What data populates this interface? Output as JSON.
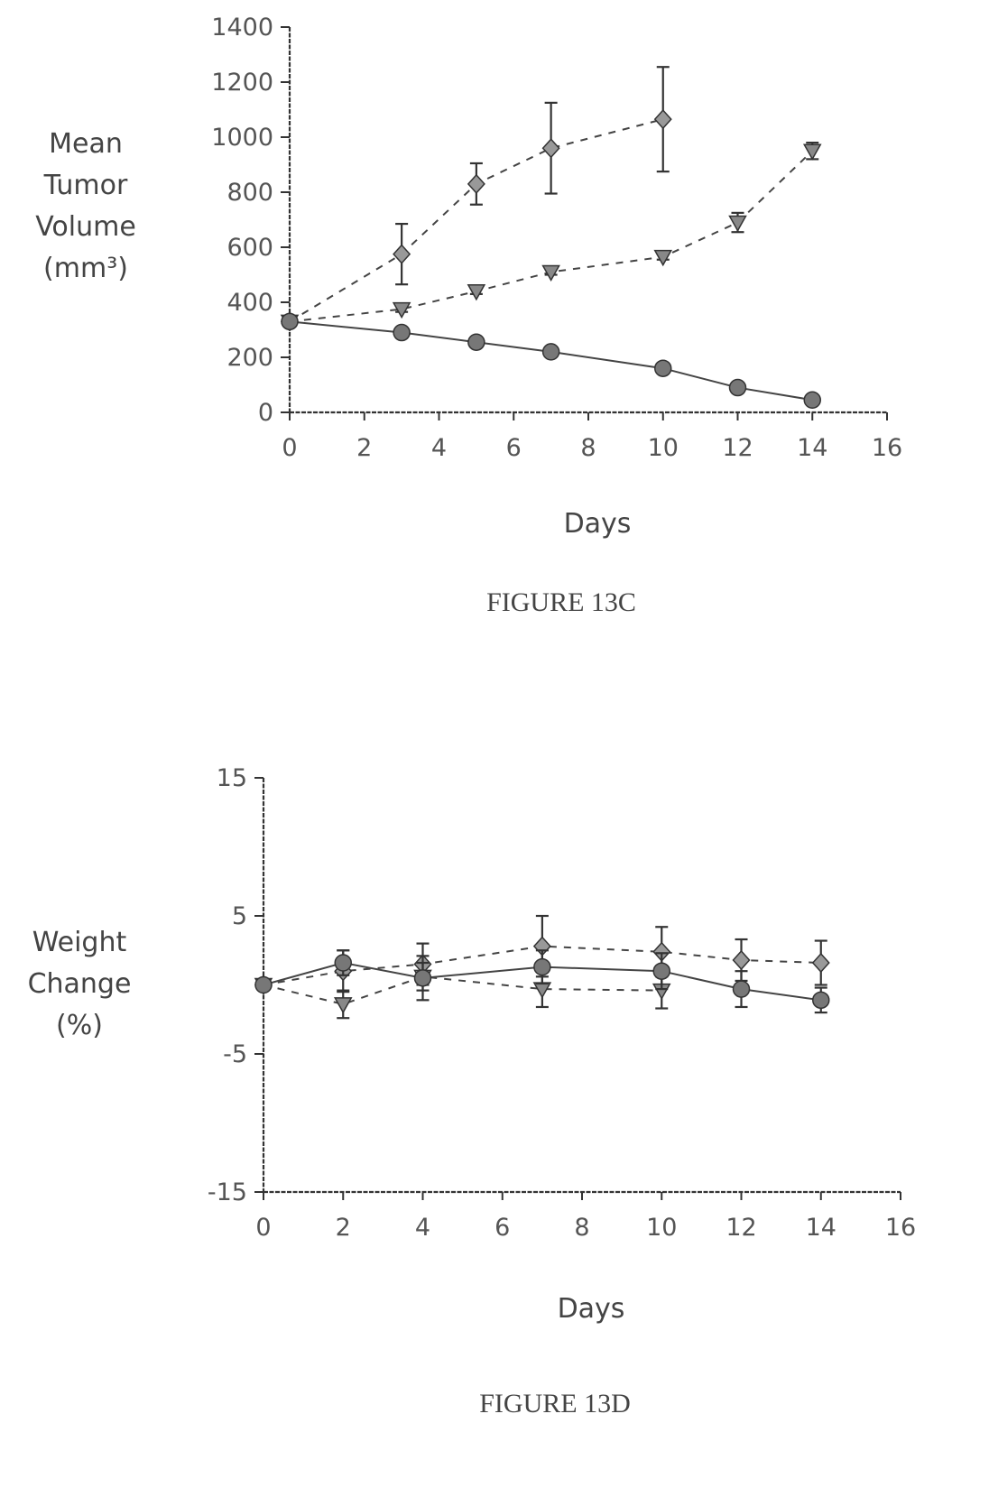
{
  "chart_data": [
    {
      "type": "line",
      "caption": "FIGURE 13C",
      "xlabel": "Days",
      "ylabel": [
        "Mean",
        "Tumor",
        "Volume",
        "(mm³)"
      ],
      "xlim": [
        0,
        16
      ],
      "ylim": [
        0,
        1400
      ],
      "xticks": [
        "0",
        "2",
        "4",
        "6",
        "8",
        "10",
        "12",
        "14",
        "16"
      ],
      "yticks": [
        "0",
        "200",
        "400",
        "600",
        "800",
        "1000",
        "1200",
        "1400"
      ],
      "series": [
        {
          "style": "dashed",
          "marker": "diamond",
          "x": [
            0,
            3,
            5,
            7,
            10
          ],
          "y": [
            330,
            575,
            830,
            960,
            1065
          ],
          "err": [
            0,
            110,
            75,
            165,
            190
          ]
        },
        {
          "style": "dashed",
          "marker": "triangle-down",
          "x": [
            0,
            3,
            5,
            7,
            10,
            12,
            14
          ],
          "y": [
            330,
            375,
            440,
            510,
            565,
            690,
            950
          ],
          "err": [
            0,
            10,
            10,
            10,
            10,
            35,
            30
          ]
        },
        {
          "style": "solid",
          "marker": "circle",
          "x": [
            0,
            3,
            5,
            7,
            10,
            12,
            14
          ],
          "y": [
            330,
            290,
            255,
            220,
            160,
            90,
            45
          ],
          "err": [
            0,
            0,
            0,
            0,
            0,
            0,
            0
          ]
        }
      ]
    },
    {
      "type": "line",
      "caption": "FIGURE 13D",
      "xlabel": "Days",
      "ylabel": [
        "Weight",
        "Change",
        "(%)"
      ],
      "xlim": [
        0,
        16
      ],
      "ylim": [
        -15,
        15
      ],
      "xticks": [
        "0",
        "2",
        "4",
        "6",
        "8",
        "10",
        "12",
        "14",
        "16"
      ],
      "yticks": [
        "15",
        "5",
        "-5",
        "-15"
      ],
      "ytick_values": [
        15,
        5,
        -5,
        -15
      ],
      "series": [
        {
          "style": "dashed",
          "marker": "diamond",
          "x": [
            0,
            2,
            4,
            7,
            10,
            12,
            14
          ],
          "y": [
            0,
            1.0,
            1.5,
            2.8,
            2.4,
            1.8,
            1.6
          ],
          "err": [
            0,
            1.5,
            1.5,
            2.2,
            1.8,
            1.5,
            1.6
          ]
        },
        {
          "style": "dashed",
          "marker": "triangle-down",
          "x": [
            0,
            2,
            4,
            7,
            10
          ],
          "y": [
            0,
            -1.4,
            0.6,
            -0.3,
            -0.4
          ],
          "err": [
            0,
            1.0,
            1.0,
            1.3,
            1.3
          ]
        },
        {
          "style": "solid",
          "marker": "circle",
          "x": [
            0,
            2,
            4,
            7,
            10,
            12,
            14
          ],
          "y": [
            0,
            1.6,
            0.5,
            1.3,
            1.0,
            -0.3,
            -1.1
          ],
          "err": [
            0,
            0.9,
            1.6,
            1.2,
            1.3,
            1.3,
            0.9
          ]
        }
      ]
    }
  ]
}
